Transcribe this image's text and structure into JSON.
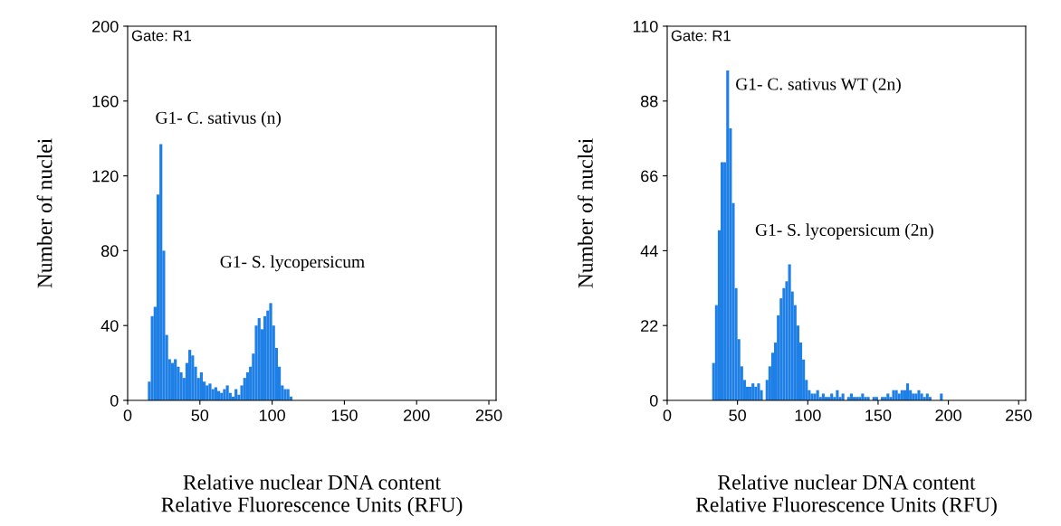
{
  "chart_data": [
    {
      "type": "histogram",
      "color": "#1e7fe6",
      "xlabel": "Relative nuclear DNA content\nRelative Fluorescence Units (RFU)",
      "ylabel": "Number of nuclei",
      "bins": [
        14,
        16,
        18,
        20,
        22,
        24,
        26,
        28,
        30,
        32,
        34,
        36,
        38,
        40,
        42,
        44,
        46,
        48,
        50,
        52,
        54,
        56,
        58,
        60,
        62,
        64,
        66,
        68,
        70,
        72,
        74,
        76,
        78,
        80,
        82,
        84,
        86,
        88,
        90,
        92,
        94,
        96,
        98,
        100,
        102,
        104,
        106,
        108,
        110,
        112,
        114
      ],
      "values": [
        10,
        45,
        50,
        110,
        137,
        80,
        35,
        22,
        20,
        22,
        18,
        15,
        12,
        20,
        27,
        24,
        18,
        12,
        15,
        10,
        8,
        9,
        6,
        7,
        5,
        4,
        6,
        8,
        4,
        2,
        6,
        3,
        8,
        12,
        15,
        18,
        25,
        40,
        44,
        38,
        45,
        48,
        52,
        40,
        28,
        18,
        8,
        6,
        6,
        2
      ],
      "xlim": [
        0,
        255
      ],
      "xticks": [
        0,
        50,
        100,
        150,
        200,
        250
      ],
      "ylim": [
        0,
        200
      ],
      "yticks": [
        0,
        40,
        80,
        120,
        160,
        200
      ],
      "annotations": [
        "Gate: R1",
        "G1- C. sativus (n)",
        "G1- S. lycopersicum"
      ]
    },
    {
      "type": "histogram",
      "color": "#1e7fe6",
      "xlabel": "Relative nuclear DNA content\nRelative Fluorescence Units (RFU)",
      "ylabel": "Number of nuclei",
      "bins": [
        32,
        34,
        36,
        38,
        40,
        42,
        44,
        46,
        48,
        50,
        52,
        54,
        56,
        58,
        60,
        62,
        64,
        66,
        68,
        70,
        72,
        74,
        76,
        78,
        80,
        82,
        84,
        86,
        88,
        90,
        92,
        94,
        96,
        98,
        100,
        102,
        104,
        106,
        108,
        110,
        112,
        114,
        116,
        118,
        120,
        122,
        124,
        126,
        128,
        130,
        132,
        134,
        136,
        138,
        140,
        142,
        144,
        146,
        148,
        150,
        152,
        154,
        156,
        158,
        160,
        162,
        164,
        166,
        168,
        170,
        172,
        174,
        176,
        178,
        180,
        182,
        184,
        186,
        188,
        190,
        192,
        194,
        196,
        198
      ],
      "values": [
        11,
        28,
        50,
        70,
        70,
        97,
        80,
        58,
        33,
        18,
        10,
        6,
        4,
        4,
        5,
        4,
        5,
        3,
        0,
        6,
        10,
        14,
        17,
        25,
        30,
        33,
        35,
        40,
        32,
        28,
        22,
        17,
        12,
        6,
        3,
        2,
        2,
        3,
        1,
        2,
        1,
        1,
        2,
        1,
        3,
        1,
        2,
        0,
        1,
        2,
        1,
        1,
        1,
        2,
        1,
        1,
        0,
        1,
        1,
        0,
        1,
        1,
        2,
        1,
        3,
        3,
        2,
        3,
        3,
        5,
        3,
        2,
        2,
        3,
        2,
        1,
        2,
        1,
        0,
        0,
        0,
        2,
        0
      ],
      "xlim": [
        0,
        255
      ],
      "xticks": [
        0,
        50,
        100,
        150,
        200,
        250
      ],
      "ylim": [
        0,
        110
      ],
      "yticks": [
        0,
        22,
        44,
        66,
        88,
        110
      ],
      "annotations": [
        "Gate: R1",
        "G1- C. sativus WT (2n)",
        "G1- S. lycopersicum (2n)"
      ]
    }
  ]
}
